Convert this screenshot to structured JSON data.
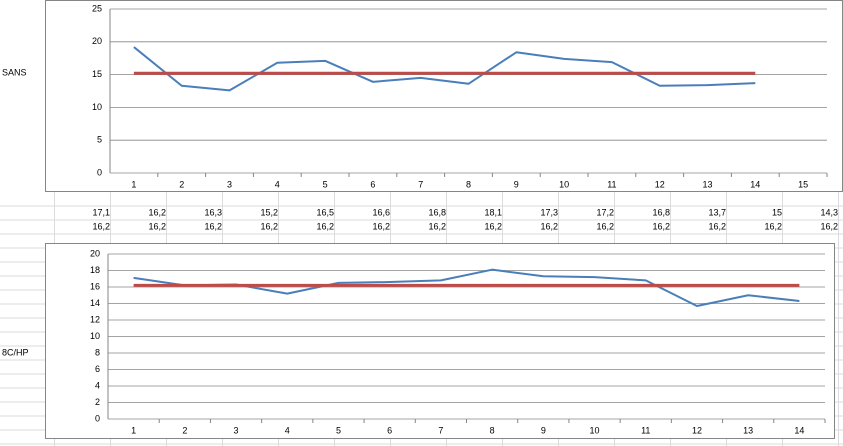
{
  "row_labels": [
    "SANS",
    "8C/HP"
  ],
  "table": {
    "rows": [
      [
        "17,1",
        "16,2",
        "16,3",
        "15,2",
        "16,5",
        "16,6",
        "16,8",
        "18,1",
        "17,3",
        "17,2",
        "16,8",
        "13,7",
        "15",
        "14,3"
      ],
      [
        "16,2",
        "16,2",
        "16,2",
        "16,2",
        "16,2",
        "16,2",
        "16,2",
        "16,2",
        "16,2",
        "16,2",
        "16,2",
        "16,2",
        "16,2",
        "16,2"
      ]
    ]
  },
  "chart_data": [
    {
      "type": "line",
      "categories": [
        "1",
        "2",
        "3",
        "4",
        "5",
        "6",
        "7",
        "8",
        "9",
        "10",
        "11",
        "12",
        "13",
        "14",
        "15"
      ],
      "series": [
        {
          "color": "#4a7ebb",
          "values": [
            19.2,
            13.3,
            12.6,
            16.8,
            17.1,
            13.9,
            14.5,
            13.6,
            18.4,
            17.4,
            16.9,
            13.3,
            13.4,
            13.7,
            null
          ]
        },
        {
          "color": "#be4b48",
          "values": [
            15.2,
            15.2,
            15.2,
            15.2,
            15.2,
            15.2,
            15.2,
            15.2,
            15.2,
            15.2,
            15.2,
            15.2,
            15.2,
            15.2,
            null
          ]
        }
      ],
      "ylim": [
        0,
        25
      ],
      "yticks": [
        0,
        5,
        10,
        15,
        20,
        25
      ],
      "grid": true
    },
    {
      "type": "line",
      "categories": [
        "1",
        "2",
        "3",
        "4",
        "5",
        "6",
        "7",
        "8",
        "9",
        "10",
        "11",
        "12",
        "13",
        "14"
      ],
      "series": [
        {
          "color": "#4a7ebb",
          "values": [
            17.1,
            16.2,
            16.3,
            15.2,
            16.5,
            16.6,
            16.8,
            18.1,
            17.3,
            17.2,
            16.8,
            13.7,
            15,
            14.3
          ]
        },
        {
          "color": "#be4b48",
          "values": [
            16.2,
            16.2,
            16.2,
            16.2,
            16.2,
            16.2,
            16.2,
            16.2,
            16.2,
            16.2,
            16.2,
            16.2,
            16.2,
            16.2
          ]
        }
      ],
      "ylim": [
        0,
        20
      ],
      "yticks": [
        0,
        2,
        4,
        6,
        8,
        10,
        12,
        14,
        16,
        18,
        20
      ],
      "grid": true
    }
  ]
}
